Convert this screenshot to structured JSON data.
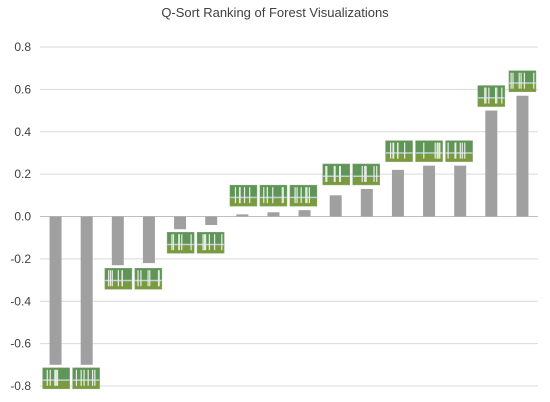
{
  "chart_data": {
    "type": "bar",
    "title": "Q-Sort Ranking of Forest Visualizations",
    "xlabel": "",
    "ylabel": "",
    "ylim": [
      -0.8,
      0.8
    ],
    "y_ticks": [
      "0.8",
      "0.6",
      "0.4",
      "0.2",
      "0.0",
      "-0.2",
      "-0.4",
      "-0.6",
      "-0.8"
    ],
    "y_tick_values": [
      0.8,
      0.6,
      0.4,
      0.2,
      0.0,
      -0.2,
      -0.4,
      -0.6,
      -0.8
    ],
    "grid": true,
    "legend": "none",
    "values": [
      -0.7,
      -0.7,
      -0.23,
      -0.22,
      -0.06,
      -0.04,
      0.01,
      0.02,
      0.03,
      0.1,
      0.13,
      0.22,
      0.24,
      0.24,
      0.5,
      0.57
    ],
    "thumbnail_groups": [
      {
        "bars": [
          0,
          1
        ],
        "position": "below",
        "count": 2
      },
      {
        "bars": [
          2,
          3
        ],
        "position": "below",
        "count": 2
      },
      {
        "bars": [
          4,
          5
        ],
        "position": "below",
        "count": 2
      },
      {
        "bars": [
          6,
          7,
          8
        ],
        "position": "above",
        "count": 3
      },
      {
        "bars": [
          9,
          10
        ],
        "position": "above",
        "count": 2
      },
      {
        "bars": [
          11,
          12,
          13
        ],
        "position": "above",
        "count": 3
      },
      {
        "bars": [
          14
        ],
        "position": "above",
        "count": 1
      },
      {
        "bars": [
          15
        ],
        "position": "above",
        "count": 1
      }
    ]
  },
  "colors": {
    "bar": "#a0a0a0",
    "grid": "#d9d9d9",
    "text": "#404040",
    "thumb_sky": "#b9d3e6",
    "thumb_canopy": "#4f8a3c",
    "thumb_ground": "#7a9a3e",
    "thumb_trunk": "#e9ece4"
  }
}
